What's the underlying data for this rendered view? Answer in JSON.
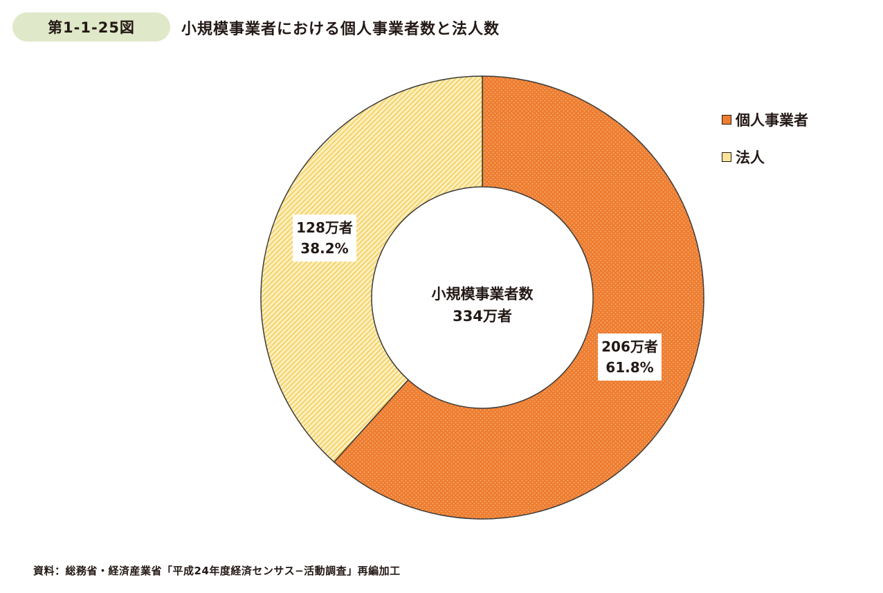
{
  "figure": {
    "number": "第1-1-25図",
    "title": "小規模事業者における個人事業者数と法人数"
  },
  "chart_data": {
    "type": "pie",
    "style": "donut",
    "center_label": [
      "小規模事業者数",
      "334万者"
    ],
    "series": [
      {
        "name": "個人事業者",
        "value": 206,
        "percent": 61.8,
        "value_label": "206万者",
        "percent_label": "61.8%",
        "color": "#ee7d30",
        "pattern": "dots"
      },
      {
        "name": "法人",
        "value": 128,
        "percent": 38.2,
        "value_label": "128万者",
        "percent_label": "38.2%",
        "color": "#fbe39a",
        "pattern": "diagonal-stripes"
      }
    ],
    "legend_position": "top-right"
  },
  "source": "資料：総務省・経済産業省「平成24年度経済センサス−活動調査」再編加工"
}
